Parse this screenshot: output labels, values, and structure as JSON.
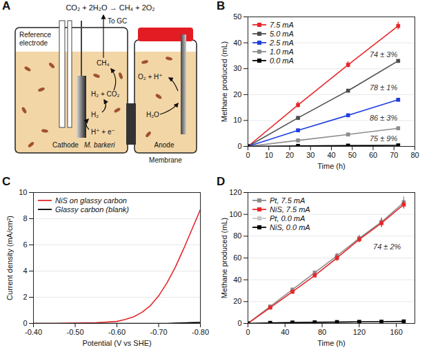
{
  "diagram": {
    "panel": "A",
    "equation": "CO₂ + 2H₂O → CH₄ + 2O₂",
    "labels": {
      "reference_electrode": "Reference electrode",
      "to_gc": "To GC",
      "ch4": "CH₄",
      "h2_co2": "H₂ + CO₂",
      "h2": "H₂",
      "protons": "H⁺ + e⁻",
      "cathode": "Cathode",
      "organism": "M. barkeri",
      "o2": "O₂ + H⁺",
      "water": "H₂O",
      "anode": "Anode",
      "membrane": "Membrane"
    }
  },
  "chart_data": [
    {
      "panel": "B",
      "type": "line",
      "x_label": "Time (h)",
      "y_label": "Methane produced (mL)",
      "x": [
        0,
        24,
        48,
        72
      ],
      "series": [
        {
          "name": "7.5 mA",
          "color": "#e8262a",
          "marker": "square",
          "values": [
            0,
            16,
            31.5,
            46.5
          ],
          "errors": [
            0,
            1.2,
            1.2,
            1.5
          ]
        },
        {
          "name": "5.0 mA",
          "color": "#4d4d4d",
          "marker": "square",
          "values": [
            0,
            11,
            21.5,
            33
          ],
          "errors": [
            0,
            0.4,
            0.4,
            0.5
          ]
        },
        {
          "name": "2.5 mA",
          "color": "#1f3fe0",
          "marker": "square",
          "values": [
            0,
            6.2,
            12,
            18
          ],
          "errors": [
            0,
            0.4,
            0.4,
            0.5
          ]
        },
        {
          "name": "1.0 mA",
          "color": "#8c8c8c",
          "marker": "square",
          "values": [
            0,
            2.3,
            4.6,
            7
          ],
          "errors": [
            0,
            0.3,
            0.3,
            0.3
          ]
        },
        {
          "name": "0.0 mA",
          "color": "#000000",
          "marker": "square",
          "values": [
            0,
            0.2,
            0.3,
            0.4
          ],
          "errors": [
            0,
            0,
            0,
            0
          ]
        }
      ],
      "annotations": [
        {
          "text": "74 ± 3%",
          "x": 65,
          "y": 35.5
        },
        {
          "text": "78 ± 1%",
          "x": 65,
          "y": 22.5
        },
        {
          "text": "86 ± 3%",
          "x": 65,
          "y": 11
        },
        {
          "text": "75 ± 9%",
          "x": 65,
          "y": 3
        }
      ],
      "xlim": [
        0,
        80
      ],
      "xticks": [
        0,
        10,
        20,
        30,
        40,
        50,
        60,
        70,
        80
      ],
      "ylim": [
        0,
        50
      ],
      "yticks": [
        0,
        10,
        20,
        30,
        40,
        50
      ],
      "grid": true,
      "legend": "top-left"
    },
    {
      "panel": "C",
      "type": "line",
      "x_label": "Potential (V vs SHE)",
      "y_label": "Current density (mA/cm²)",
      "x": [
        -0.4,
        -0.45,
        -0.5,
        -0.55,
        -0.6,
        -0.62,
        -0.64,
        -0.66,
        -0.68,
        -0.7,
        -0.72,
        -0.74,
        -0.76,
        -0.78,
        -0.8
      ],
      "series": [
        {
          "name": "NiS on glassy carbon",
          "color": "#e8262a",
          "values": [
            0,
            0,
            0.02,
            0.05,
            0.15,
            0.3,
            0.5,
            0.85,
            1.35,
            2.1,
            3.1,
            4.3,
            5.7,
            7.2,
            8.7
          ]
        },
        {
          "name": "Glassy carbon (blank)",
          "color": "#000000",
          "values": [
            0,
            0,
            0,
            0,
            0,
            0,
            0,
            0,
            0,
            0,
            0,
            0.02,
            0.04,
            0.06,
            0.08
          ]
        }
      ],
      "xlim": [
        -0.4,
        -0.8
      ],
      "xticks": [
        {
          "value": -0.4,
          "label": "-0.40"
        },
        {
          "value": -0.5,
          "label": "-0.50"
        },
        {
          "value": -0.6,
          "label": "-0.60"
        },
        {
          "value": -0.7,
          "label": "-0.70"
        },
        {
          "value": -0.8,
          "label": "-0.80"
        }
      ],
      "ylim": [
        0,
        10
      ],
      "yticks": [
        0,
        2,
        4,
        6,
        8,
        10
      ],
      "grid": true,
      "legend": "top-left"
    },
    {
      "panel": "D",
      "type": "line",
      "x_label": "Time (h)",
      "y_label": "Methane produced (mL)",
      "x": [
        0,
        24,
        48,
        72,
        96,
        120,
        144,
        168
      ],
      "series": [
        {
          "name": "Pt, 7.5 mA",
          "color": "#8c8c8c",
          "marker": "square",
          "values": [
            0,
            15.5,
            31,
            46.5,
            62,
            78,
            93,
            111
          ],
          "errors": [
            0,
            1,
            1.5,
            2,
            2.5,
            3,
            4,
            5
          ]
        },
        {
          "name": "NiS, 7.5 mA",
          "color": "#e8262a",
          "marker": "square",
          "values": [
            0,
            14.5,
            29,
            44,
            60,
            77,
            92,
            109
          ],
          "errors": [
            0,
            1,
            1.5,
            2,
            3,
            3,
            4,
            4
          ]
        },
        {
          "name": "Pt, 0.0 mA",
          "color": "#c8c8c8",
          "marker": "square",
          "values": [
            0,
            0.6,
            0.9,
            1.1,
            1.3,
            1.5,
            1.7,
            1.9
          ],
          "errors": [
            0,
            0.3,
            0.3,
            0.3,
            0.3,
            0.3,
            0.3,
            0.3
          ]
        },
        {
          "name": "NiS, 0.0 mA",
          "color": "#000000",
          "marker": "square",
          "values": [
            0,
            0.5,
            0.8,
            1,
            1.2,
            1.4,
            1.6,
            1.8
          ],
          "errors": [
            0,
            0.3,
            0.3,
            0.3,
            0.3,
            0.3,
            0.3,
            0.3
          ]
        }
      ],
      "annotations": [
        {
          "text": "74 ± 2%",
          "x": 150,
          "y": 70
        }
      ],
      "xlim": [
        0,
        180
      ],
      "xticks": [
        0,
        40,
        80,
        120,
        160
      ],
      "ylim": [
        0,
        120
      ],
      "yticks": [
        0,
        20,
        40,
        60,
        80,
        100,
        120
      ],
      "grid": true,
      "legend": "top-left"
    }
  ]
}
